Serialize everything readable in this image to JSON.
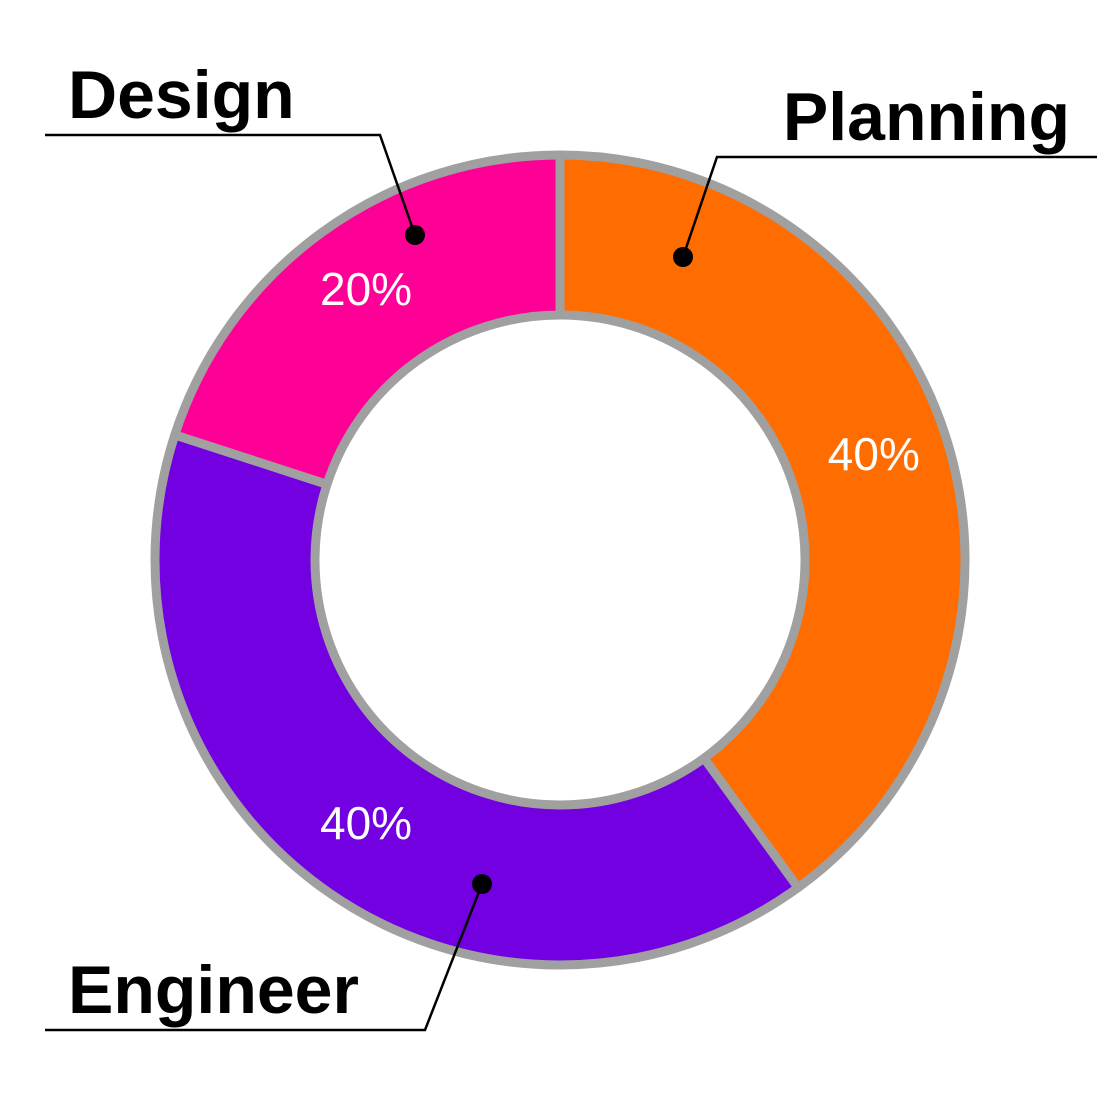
{
  "chart_data": {
    "type": "donut",
    "categories": [
      "Planning",
      "Engineer",
      "Design"
    ],
    "values": [
      40,
      40,
      20
    ],
    "value_labels": [
      "40%",
      "40%",
      "20%"
    ],
    "colors": [
      "#ff6d00",
      "#7300e0",
      "#ff0096"
    ]
  }
}
